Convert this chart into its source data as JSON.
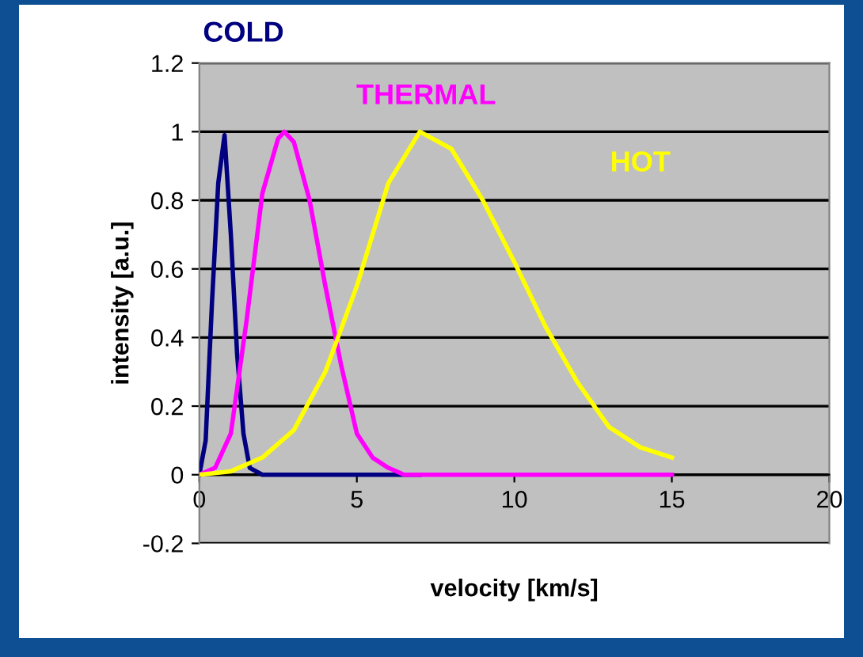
{
  "chart_data": {
    "type": "line",
    "xlabel": "velocity [km/s]",
    "ylabel": "intensity [a.u.]",
    "xlim": [
      0,
      20
    ],
    "xticks": [
      0,
      5,
      10,
      15,
      20
    ],
    "ylim": [
      -0.2,
      1.2
    ],
    "yticks": [
      -0.2,
      0,
      0.2,
      0.4,
      0.6,
      0.8,
      1,
      1.2
    ],
    "grid": "y",
    "legend": false,
    "marker": "none",
    "line_style": "solid",
    "series": [
      {
        "name": "COLD",
        "color": "#000080",
        "x": [
          0,
          0.2,
          0.4,
          0.6,
          0.8,
          1.0,
          1.2,
          1.4,
          1.6,
          2,
          7
        ],
        "values": [
          0,
          0.1,
          0.5,
          0.85,
          0.99,
          0.7,
          0.35,
          0.12,
          0.02,
          0,
          0
        ]
      },
      {
        "name": "THERMAL",
        "color": "#ff00ff",
        "x": [
          0,
          0.5,
          1,
          1.5,
          2,
          2.5,
          2.7,
          3,
          3.5,
          4,
          4.5,
          5,
          5.5,
          6,
          6.5,
          15
        ],
        "values": [
          0,
          0.02,
          0.12,
          0.45,
          0.82,
          0.98,
          1.0,
          0.97,
          0.8,
          0.55,
          0.32,
          0.12,
          0.05,
          0.02,
          0,
          0
        ]
      },
      {
        "name": "HOT",
        "color": "#ffff00",
        "x": [
          0,
          1,
          2,
          3,
          4,
          5,
          6,
          7,
          8,
          9,
          10,
          11,
          12,
          13,
          14,
          15
        ],
        "values": [
          0,
          0.01,
          0.05,
          0.13,
          0.3,
          0.55,
          0.85,
          1.0,
          0.95,
          0.8,
          0.62,
          0.43,
          0.27,
          0.14,
          0.08,
          0.05
        ]
      }
    ]
  }
}
